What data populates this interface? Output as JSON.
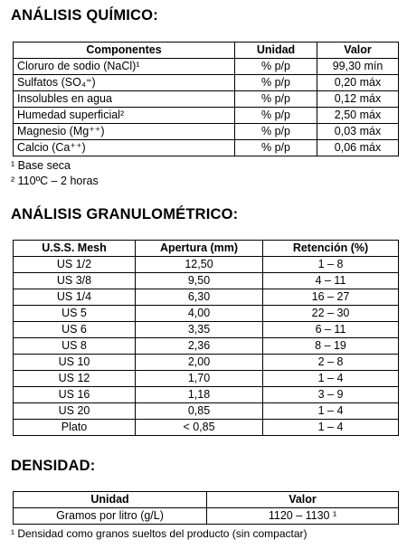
{
  "chemical": {
    "title": "ANÁLISIS QUÍMICO:",
    "table": {
      "header": [
        "Componentes",
        "Unidad",
        "Valor"
      ],
      "rows": [
        [
          "Cloruro de sodio (NaCl)¹",
          "% p/p",
          "99,30 mín"
        ],
        [
          "Sulfatos (SO₄⁼)",
          "% p/p",
          "0,20 máx"
        ],
        [
          "Insolubles en agua",
          "% p/p",
          "0,12 máx"
        ],
        [
          "Humedad superficial²",
          "% p/p",
          "2,50 máx"
        ],
        [
          "Magnesio (Mg⁺⁺)",
          "% p/p",
          "0,03 máx"
        ],
        [
          "Calcio (Ca⁺⁺)",
          "% p/p",
          "0,06 máx"
        ]
      ]
    },
    "notes": [
      "¹ Base seca",
      "² 110ºC – 2 horas"
    ]
  },
  "granulometric": {
    "title": "ANÁLISIS GRANULOMÉTRICO:",
    "table": {
      "header": [
        "U.S.S. Mesh",
        "Apertura (mm)",
        "Retención (%)"
      ],
      "rows": [
        [
          "US 1/2",
          "12,50",
          "1 – 8"
        ],
        [
          "US 3/8",
          "9,50",
          "4 – 11"
        ],
        [
          "US 1/4",
          "6,30",
          "16 – 27"
        ],
        [
          "US 5",
          "4,00",
          "22 – 30"
        ],
        [
          "US 6",
          "3,35",
          "6 – 11"
        ],
        [
          "US 8",
          "2,36",
          "8 – 19"
        ],
        [
          "US 10",
          "2,00",
          "2 – 8"
        ],
        [
          "US 12",
          "1,70",
          "1 – 4"
        ],
        [
          "US 16",
          "1,18",
          "3 – 9"
        ],
        [
          "US 20",
          "0,85",
          "1 – 4"
        ],
        [
          "Plato",
          "< 0,85",
          "1 – 4"
        ]
      ]
    }
  },
  "density": {
    "title": "DENSIDAD:",
    "table": {
      "header": [
        "Unidad",
        "Valor"
      ],
      "rows": [
        [
          "Gramos por litro (g/L)",
          "1120 – 1130 ¹"
        ]
      ]
    },
    "notes": [
      "¹ Densidad como granos sueltos del producto (sin compactar)"
    ]
  }
}
